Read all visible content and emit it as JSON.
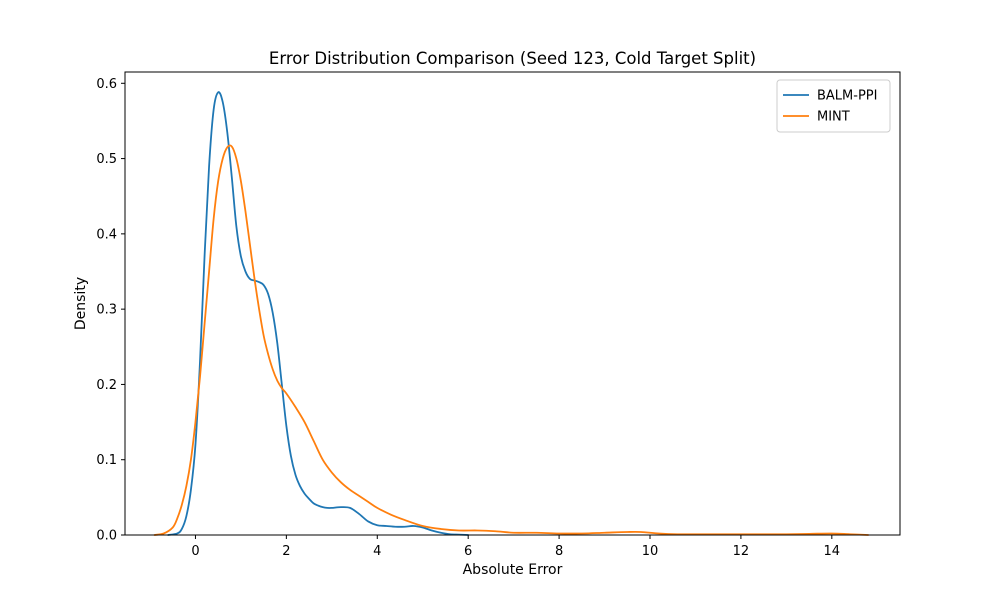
{
  "chart_data": {
    "type": "line",
    "title": "Error Distribution Comparison (Seed 123, Cold Target Split)",
    "xlabel": "Absolute Error",
    "ylabel": "Density",
    "xlim": [
      -1.55,
      15.5
    ],
    "ylim": [
      0,
      0.615
    ],
    "xticks": [
      0,
      2,
      4,
      6,
      8,
      10,
      12,
      14
    ],
    "yticks": [
      0.0,
      0.1,
      0.2,
      0.3,
      0.4,
      0.5,
      0.6
    ],
    "grid": false,
    "legend_position": "top-right",
    "series": [
      {
        "name": "BALM-PPI",
        "color": "#1f77b4",
        "x": [
          -0.6,
          -0.4,
          -0.3,
          -0.2,
          -0.1,
          0.0,
          0.1,
          0.2,
          0.3,
          0.4,
          0.5,
          0.6,
          0.7,
          0.8,
          0.9,
          1.0,
          1.1,
          1.2,
          1.3,
          1.4,
          1.5,
          1.6,
          1.7,
          1.8,
          1.9,
          2.0,
          2.1,
          2.2,
          2.3,
          2.4,
          2.5,
          2.6,
          2.7,
          2.8,
          2.9,
          3.0,
          3.2,
          3.4,
          3.6,
          3.8,
          4.0,
          4.2,
          4.4,
          4.6,
          4.8,
          5.0,
          5.2,
          5.4,
          5.6,
          5.8,
          6.0
        ],
        "y": [
          0.0,
          0.002,
          0.008,
          0.025,
          0.06,
          0.12,
          0.23,
          0.37,
          0.49,
          0.565,
          0.588,
          0.575,
          0.535,
          0.475,
          0.41,
          0.37,
          0.35,
          0.34,
          0.338,
          0.336,
          0.332,
          0.32,
          0.295,
          0.255,
          0.2,
          0.145,
          0.105,
          0.08,
          0.065,
          0.055,
          0.048,
          0.042,
          0.039,
          0.037,
          0.036,
          0.036,
          0.037,
          0.036,
          0.028,
          0.018,
          0.013,
          0.012,
          0.011,
          0.011,
          0.012,
          0.01,
          0.006,
          0.003,
          0.001,
          0.0005,
          0.0
        ]
      },
      {
        "name": "MINT",
        "color": "#ff7f0e",
        "x": [
          -0.9,
          -0.7,
          -0.5,
          -0.4,
          -0.3,
          -0.2,
          -0.1,
          0.0,
          0.1,
          0.2,
          0.3,
          0.4,
          0.5,
          0.6,
          0.7,
          0.8,
          0.9,
          1.0,
          1.1,
          1.2,
          1.3,
          1.4,
          1.5,
          1.6,
          1.7,
          1.8,
          1.9,
          2.0,
          2.2,
          2.4,
          2.6,
          2.8,
          3.0,
          3.2,
          3.4,
          3.6,
          3.8,
          4.0,
          4.3,
          4.6,
          5.0,
          5.4,
          5.8,
          6.2,
          6.6,
          7.0,
          7.5,
          8.0,
          8.5,
          9.0,
          9.5,
          9.8,
          10.2,
          10.6,
          11.0,
          12.0,
          13.0,
          13.5,
          14.0,
          14.4,
          14.8
        ],
        "y": [
          0.0,
          0.002,
          0.01,
          0.022,
          0.04,
          0.065,
          0.1,
          0.15,
          0.21,
          0.28,
          0.35,
          0.42,
          0.47,
          0.5,
          0.515,
          0.516,
          0.5,
          0.47,
          0.43,
          0.385,
          0.34,
          0.3,
          0.265,
          0.24,
          0.22,
          0.205,
          0.195,
          0.188,
          0.17,
          0.15,
          0.125,
          0.1,
          0.083,
          0.07,
          0.06,
          0.052,
          0.044,
          0.036,
          0.027,
          0.02,
          0.012,
          0.008,
          0.006,
          0.006,
          0.005,
          0.003,
          0.003,
          0.002,
          0.002,
          0.003,
          0.004,
          0.004,
          0.002,
          0.001,
          0.001,
          0.001,
          0.001,
          0.0015,
          0.002,
          0.001,
          0.0
        ]
      }
    ]
  }
}
